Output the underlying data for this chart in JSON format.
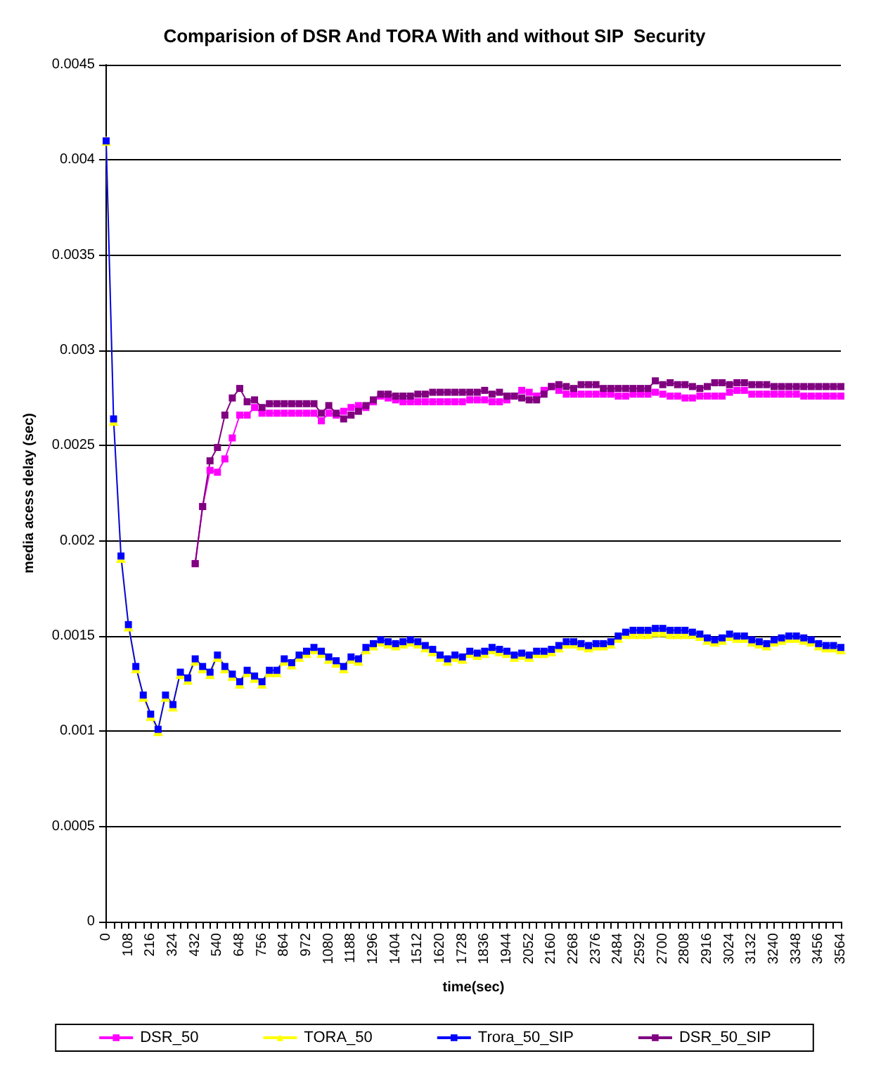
{
  "chart_data": {
    "type": "line",
    "title": "Comparision of DSR And TORA With and without SIP  Security",
    "xlabel": "time(sec)",
    "ylabel": "media acess delay (sec)",
    "categories": [
      "0",
      null,
      null,
      "108",
      null,
      null,
      "216",
      null,
      null,
      "324",
      null,
      null,
      "432",
      null,
      null,
      "540",
      null,
      null,
      "648",
      null,
      null,
      "756",
      null,
      null,
      "864",
      null,
      null,
      "972",
      null,
      null,
      "1080",
      null,
      null,
      "1188",
      null,
      null,
      "1296",
      null,
      null,
      "1404",
      null,
      null,
      "1512",
      null,
      null,
      "1620",
      null,
      null,
      "1728",
      null,
      null,
      "1836",
      null,
      null,
      "1944",
      null,
      null,
      "2052",
      null,
      null,
      "2160",
      null,
      null,
      "2268",
      null,
      null,
      "2376",
      null,
      null,
      "2484",
      null,
      null,
      "2592",
      null,
      null,
      "2700",
      null,
      null,
      "2808",
      null,
      null,
      "2916",
      null,
      null,
      "3024",
      null,
      null,
      "3132",
      null,
      null,
      "3240",
      null,
      null,
      "3348",
      null,
      null,
      "3456",
      null,
      null,
      "3564"
    ],
    "ylim": [
      0,
      0.0045
    ],
    "yticks": [
      0,
      0.0005,
      0.001,
      0.0015,
      0.002,
      0.0025,
      0.003,
      0.0035,
      0.004,
      0.0045
    ],
    "grid": "y",
    "legend": "bottom",
    "marker": "square",
    "series": [
      {
        "name": "DSR_50",
        "color": "#ff00ff",
        "values": [
          null,
          null,
          null,
          null,
          null,
          null,
          null,
          null,
          null,
          null,
          null,
          null,
          0.00188,
          0.00218,
          0.00237,
          0.00236,
          0.00243,
          0.00254,
          0.00266,
          0.00266,
          0.0027,
          0.00267,
          0.00267,
          0.00267,
          0.00267,
          0.00267,
          0.00267,
          0.00267,
          0.00267,
          0.00263,
          0.00267,
          0.00266,
          0.00268,
          0.0027,
          0.00271,
          0.0027,
          0.00273,
          0.00276,
          0.00275,
          0.00274,
          0.00273,
          0.00273,
          0.00273,
          0.00273,
          0.00273,
          0.00273,
          0.00273,
          0.00273,
          0.00273,
          0.00274,
          0.00274,
          0.00274,
          0.00273,
          0.00273,
          0.00274,
          0.00276,
          0.00279,
          0.00278,
          0.00276,
          0.00279,
          0.00281,
          0.00279,
          0.00277,
          0.00277,
          0.00277,
          0.00277,
          0.00277,
          0.00277,
          0.00277,
          0.00276,
          0.00276,
          0.00277,
          0.00277,
          0.00277,
          0.00278,
          0.00277,
          0.00276,
          0.00276,
          0.00275,
          0.00275,
          0.00276,
          0.00276,
          0.00276,
          0.00276,
          0.00278,
          0.00279,
          0.00279,
          0.00277,
          0.00277,
          0.00277,
          0.00277,
          0.00277,
          0.00277,
          0.00277,
          0.00276,
          0.00276,
          0.00276,
          0.00276,
          0.00276,
          0.00276
        ]
      },
      {
        "name": "TORA_50",
        "color": "#ffff00",
        "marker": "triangle",
        "values": [
          0.0041,
          0.00263,
          0.00191,
          0.00155,
          0.00133,
          0.00118,
          0.00108,
          0.001,
          0.00118,
          0.00113,
          0.0013,
          0.00127,
          0.00137,
          0.00133,
          0.0013,
          0.00139,
          0.00133,
          0.00129,
          0.00125,
          0.00131,
          0.00128,
          0.00125,
          0.00131,
          0.00131,
          0.00137,
          0.00135,
          0.00139,
          0.00141,
          0.00143,
          0.00141,
          0.00138,
          0.00136,
          0.00133,
          0.00138,
          0.00137,
          0.00143,
          0.00145,
          0.00147,
          0.00146,
          0.00145,
          0.00146,
          0.00147,
          0.00146,
          0.00144,
          0.00142,
          0.00139,
          0.00137,
          0.00139,
          0.00138,
          0.00141,
          0.0014,
          0.00141,
          0.00143,
          0.00142,
          0.00141,
          0.00139,
          0.0014,
          0.00139,
          0.00141,
          0.00141,
          0.00142,
          0.00144,
          0.00146,
          0.00146,
          0.00145,
          0.00144,
          0.00145,
          0.00145,
          0.00146,
          0.00149,
          0.00151,
          0.00151,
          0.00151,
          0.00151,
          0.00152,
          0.00152,
          0.00151,
          0.00151,
          0.00151,
          0.00151,
          0.0015,
          0.00148,
          0.00147,
          0.00148,
          0.0015,
          0.00149,
          0.00149,
          0.00147,
          0.00146,
          0.00145,
          0.00147,
          0.00148,
          0.00149,
          0.00149,
          0.00148,
          0.00147,
          0.00145,
          0.00144,
          0.00144,
          0.00143
        ]
      },
      {
        "name": "Trora_50_SIP",
        "color": "#0000ff",
        "values": [
          0.0041,
          0.00264,
          0.00192,
          0.00156,
          0.00134,
          0.00119,
          0.00109,
          0.00101,
          0.00119,
          0.00114,
          0.00131,
          0.00128,
          0.00138,
          0.00134,
          0.00131,
          0.0014,
          0.00134,
          0.0013,
          0.00126,
          0.00132,
          0.00129,
          0.00126,
          0.00132,
          0.00132,
          0.00138,
          0.00136,
          0.0014,
          0.00142,
          0.00144,
          0.00142,
          0.00139,
          0.00137,
          0.00134,
          0.00139,
          0.00138,
          0.00144,
          0.00146,
          0.00148,
          0.00147,
          0.00146,
          0.00147,
          0.00148,
          0.00147,
          0.00145,
          0.00143,
          0.0014,
          0.00138,
          0.0014,
          0.00139,
          0.00142,
          0.00141,
          0.00142,
          0.00144,
          0.00143,
          0.00142,
          0.0014,
          0.00141,
          0.0014,
          0.00142,
          0.00142,
          0.00143,
          0.00145,
          0.00147,
          0.00147,
          0.00146,
          0.00145,
          0.00146,
          0.00146,
          0.00147,
          0.0015,
          0.00152,
          0.00153,
          0.00153,
          0.00153,
          0.00154,
          0.00154,
          0.00153,
          0.00153,
          0.00153,
          0.00152,
          0.00151,
          0.00149,
          0.00148,
          0.00149,
          0.00151,
          0.0015,
          0.0015,
          0.00148,
          0.00147,
          0.00146,
          0.00148,
          0.00149,
          0.0015,
          0.0015,
          0.00149,
          0.00148,
          0.00146,
          0.00145,
          0.00145,
          0.00144
        ]
      },
      {
        "name": "DSR_50_SIP",
        "color": "#800080",
        "values": [
          null,
          null,
          null,
          null,
          null,
          null,
          null,
          null,
          null,
          null,
          null,
          null,
          0.00188,
          0.00218,
          0.00242,
          0.00249,
          0.00266,
          0.00275,
          0.0028,
          0.00273,
          0.00274,
          0.0027,
          0.00272,
          0.00272,
          0.00272,
          0.00272,
          0.00272,
          0.00272,
          0.00272,
          0.00267,
          0.00271,
          0.00267,
          0.00264,
          0.00266,
          0.00268,
          0.00271,
          0.00274,
          0.00277,
          0.00277,
          0.00276,
          0.00276,
          0.00276,
          0.00277,
          0.00277,
          0.00278,
          0.00278,
          0.00278,
          0.00278,
          0.00278,
          0.00278,
          0.00278,
          0.00279,
          0.00277,
          0.00278,
          0.00276,
          0.00276,
          0.00275,
          0.00274,
          0.00274,
          0.00277,
          0.00281,
          0.00282,
          0.00281,
          0.0028,
          0.00282,
          0.00282,
          0.00282,
          0.0028,
          0.0028,
          0.0028,
          0.0028,
          0.0028,
          0.0028,
          0.0028,
          0.00284,
          0.00282,
          0.00283,
          0.00282,
          0.00282,
          0.00281,
          0.0028,
          0.00281,
          0.00283,
          0.00283,
          0.00282,
          0.00283,
          0.00283,
          0.00282,
          0.00282,
          0.00282,
          0.00281,
          0.00281,
          0.00281,
          0.00281,
          0.00281,
          0.00281,
          0.00281,
          0.00281,
          0.00281,
          0.00281
        ]
      }
    ]
  }
}
